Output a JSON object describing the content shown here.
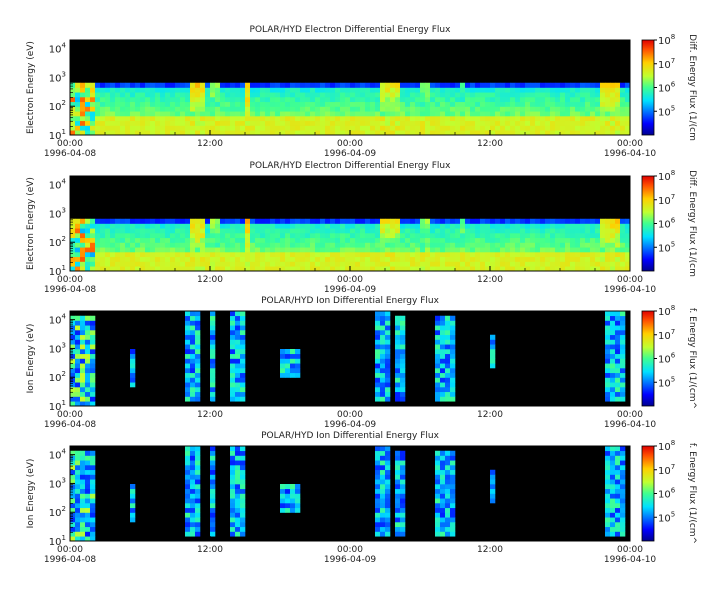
{
  "chart_data": [
    {
      "type": "heatmap",
      "title": "POLAR/HYD  Electron Differential Energy Flux",
      "ylabel": "Electron Energy (eV)",
      "yscale": "log",
      "ylim": [
        10,
        20000
      ],
      "yticks": [
        {
          "m": "10",
          "e": "1",
          "v": 1
        },
        {
          "m": "10",
          "e": "2",
          "v": 2
        },
        {
          "m": "10",
          "e": "3",
          "v": 3
        },
        {
          "m": "10",
          "e": "4",
          "v": 4
        }
      ],
      "xlim": [
        "1996-04-08 00:00",
        "1996-04-10 00:00"
      ],
      "xticks": [
        {
          "t": "00:00",
          "d": "1996-04-08",
          "h": 0
        },
        {
          "t": "12:00",
          "d": "",
          "h": 12
        },
        {
          "t": "00:00",
          "d": "1996-04-09",
          "h": 24
        },
        {
          "t": "12:00",
          "d": "",
          "h": 36
        },
        {
          "t": "00:00",
          "d": "1996-04-10",
          "h": 48
        }
      ],
      "colorbar": {
        "label": "Diff. Energy Flux (1/(cm",
        "zscale": "log",
        "zlim": [
          10000,
          100000000
        ],
        "ticks": [
          {
            "m": "10",
            "e": "5",
            "v": 5
          },
          {
            "m": "10",
            "e": "6",
            "v": 6
          },
          {
            "m": "10",
            "e": "7",
            "v": 7
          },
          {
            "m": "10",
            "e": "8",
            "v": 8
          }
        ]
      },
      "species": "electron"
    },
    {
      "type": "heatmap",
      "title": "POLAR/HYD  Electron Differential Energy Flux",
      "ylabel": "Electron Energy (eV)",
      "yscale": "log",
      "ylim": [
        10,
        20000
      ],
      "yticks": [
        {
          "m": "10",
          "e": "1",
          "v": 1
        },
        {
          "m": "10",
          "e": "2",
          "v": 2
        },
        {
          "m": "10",
          "e": "3",
          "v": 3
        },
        {
          "m": "10",
          "e": "4",
          "v": 4
        }
      ],
      "xlim": [
        "1996-04-08 00:00",
        "1996-04-10 00:00"
      ],
      "xticks": [
        {
          "t": "00:00",
          "d": "1996-04-08",
          "h": 0
        },
        {
          "t": "12:00",
          "d": "",
          "h": 12
        },
        {
          "t": "00:00",
          "d": "1996-04-09",
          "h": 24
        },
        {
          "t": "12:00",
          "d": "",
          "h": 36
        },
        {
          "t": "00:00",
          "d": "1996-04-10",
          "h": 48
        }
      ],
      "colorbar": {
        "label": "Diff. Energy Flux (1/(cm",
        "zscale": "log",
        "zlim": [
          10000,
          100000000
        ],
        "ticks": [
          {
            "m": "10",
            "e": "5",
            "v": 5
          },
          {
            "m": "10",
            "e": "6",
            "v": 6
          },
          {
            "m": "10",
            "e": "7",
            "v": 7
          },
          {
            "m": "10",
            "e": "8",
            "v": 8
          }
        ]
      },
      "species": "electron"
    },
    {
      "type": "heatmap",
      "title": "POLAR/HYD  Ion Differential Energy Flux",
      "ylabel": "Ion Energy (eV)",
      "yscale": "log",
      "ylim": [
        10,
        20000
      ],
      "yticks": [
        {
          "m": "10",
          "e": "1",
          "v": 1
        },
        {
          "m": "10",
          "e": "2",
          "v": 2
        },
        {
          "m": "10",
          "e": "3",
          "v": 3
        },
        {
          "m": "10",
          "e": "4",
          "v": 4
        }
      ],
      "xlim": [
        "1996-04-08 00:00",
        "1996-04-10 00:00"
      ],
      "xticks": [
        {
          "t": "00:00",
          "d": "1996-04-08",
          "h": 0
        },
        {
          "t": "12:00",
          "d": "",
          "h": 12
        },
        {
          "t": "00:00",
          "d": "1996-04-09",
          "h": 24
        },
        {
          "t": "12:00",
          "d": "",
          "h": 36
        },
        {
          "t": "00:00",
          "d": "1996-04-10",
          "h": 48
        }
      ],
      "colorbar": {
        "label": "f. Energy Flux (1/(cm^",
        "zscale": "log",
        "zlim": [
          10000,
          100000000
        ],
        "ticks": [
          {
            "m": "10",
            "e": "5",
            "v": 5
          },
          {
            "m": "10",
            "e": "6",
            "v": 6
          },
          {
            "m": "10",
            "e": "7",
            "v": 7
          },
          {
            "m": "10",
            "e": "8",
            "v": 8
          }
        ]
      },
      "species": "ion"
    },
    {
      "type": "heatmap",
      "title": "POLAR/HYD  Ion Differential Energy Flux",
      "ylabel": "Ion Energy (eV)",
      "yscale": "log",
      "ylim": [
        10,
        20000
      ],
      "yticks": [
        {
          "m": "10",
          "e": "1",
          "v": 1
        },
        {
          "m": "10",
          "e": "2",
          "v": 2
        },
        {
          "m": "10",
          "e": "3",
          "v": 3
        },
        {
          "m": "10",
          "e": "4",
          "v": 4
        }
      ],
      "xlim": [
        "1996-04-08 00:00",
        "1996-04-10 00:00"
      ],
      "xticks": [
        {
          "t": "00:00",
          "d": "1996-04-08",
          "h": 0
        },
        {
          "t": "12:00",
          "d": "",
          "h": 12
        },
        {
          "t": "00:00",
          "d": "1996-04-09",
          "h": 24
        },
        {
          "t": "12:00",
          "d": "",
          "h": 36
        },
        {
          "t": "00:00",
          "d": "1996-04-10",
          "h": 48
        }
      ],
      "colorbar": {
        "label": "f. Energy Flux (1/(cm^",
        "zscale": "log",
        "zlim": [
          10000,
          100000000
        ],
        "ticks": [
          {
            "m": "10",
            "e": "5",
            "v": 5
          },
          {
            "m": "10",
            "e": "6",
            "v": 6
          },
          {
            "m": "10",
            "e": "7",
            "v": 7
          },
          {
            "m": "10",
            "e": "8",
            "v": 8
          }
        ]
      },
      "species": "ion"
    }
  ]
}
